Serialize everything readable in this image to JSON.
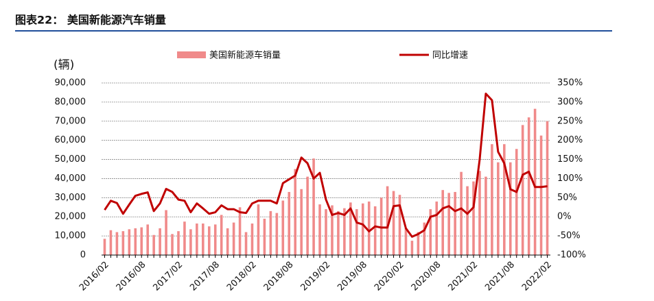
{
  "chart_data": {
    "type": "bar-line",
    "title": "图表22：   美国新能源汽车销量",
    "y_label": "(辆)",
    "categories": [
      "2016/02",
      null,
      null,
      null,
      null,
      null,
      "2016/08",
      null,
      null,
      null,
      null,
      null,
      "2017/02",
      null,
      null,
      null,
      null,
      null,
      "2017/08",
      null,
      null,
      null,
      null,
      null,
      "2018/02",
      null,
      null,
      null,
      null,
      null,
      "2018/08",
      null,
      null,
      null,
      null,
      null,
      "2019/02",
      null,
      null,
      null,
      null,
      null,
      "2019/08",
      null,
      null,
      null,
      null,
      null,
      "2020/02",
      null,
      null,
      null,
      null,
      null,
      "2020/08",
      null,
      null,
      null,
      null,
      null,
      "2021/02",
      null,
      null,
      null,
      null,
      null,
      "2021/08",
      null,
      null,
      null,
      null,
      null,
      "2022/02"
    ],
    "series": [
      {
        "name": "美国新能源车销量",
        "color": "#f08a8a",
        "axis": "y",
        "values": [
          8500,
          13000,
          12000,
          12500,
          13500,
          14000,
          14500,
          16000,
          10500,
          14000,
          23500,
          11000,
          12500,
          17500,
          13500,
          16500,
          16500,
          15000,
          16000,
          21000,
          14000,
          17000,
          25000,
          12000,
          16500,
          26500,
          19000,
          23000,
          22000,
          28500,
          33000,
          45000,
          34500,
          41000,
          50500,
          26500,
          24000,
          26000,
          23000,
          24500,
          27500,
          24000,
          27000,
          28000,
          25500,
          30000,
          36000,
          33500,
          31500,
          14000,
          7500,
          12000,
          17000,
          24000,
          28000,
          34000,
          32500,
          33000,
          43500,
          36000,
          38500,
          44000,
          41000,
          58000,
          48500,
          58000,
          48500,
          55500,
          68000,
          72000,
          76500,
          62500,
          70000
        ]
      },
      {
        "name": "同比增速",
        "color": "#c00000",
        "axis": "y2",
        "values": [
          18,
          42,
          36,
          8,
          32,
          55,
          60,
          64,
          15,
          35,
          73,
          65,
          45,
          42,
          12,
          35,
          22,
          8,
          12,
          30,
          20,
          20,
          12,
          10,
          35,
          42,
          42,
          42,
          35,
          88,
          98,
          108,
          155,
          140,
          100,
          115,
          45,
          5,
          10,
          5,
          22,
          -15,
          -20,
          -38,
          -25,
          -28,
          -28,
          28,
          30,
          -30,
          -52,
          -45,
          -35,
          0,
          5,
          22,
          28,
          15,
          22,
          8,
          25,
          150,
          322,
          305,
          170,
          140,
          72,
          65,
          110,
          118,
          78,
          78,
          80
        ]
      }
    ],
    "ylim": [
      0,
      90000
    ],
    "yticks": [
      0,
      {
        "value": 10000,
        "label": "10,000"
      },
      {
        "value": 20000,
        "label": "20,000"
      },
      {
        "value": 30000,
        "label": "30,000"
      },
      {
        "value": 40000,
        "label": "40,000"
      },
      {
        "value": 50000,
        "label": "50,000"
      },
      {
        "value": 60000,
        "label": "60,000"
      },
      {
        "value": 70000,
        "label": "70,000"
      },
      {
        "value": 80000,
        "label": "80,000"
      },
      {
        "value": 90000,
        "label": "90,000"
      }
    ],
    "y2lim": [
      -100,
      350
    ],
    "y2ticks": [
      {
        "value": -100,
        "label": "-100%"
      },
      {
        "value": -50,
        "label": "-50%"
      },
      {
        "value": 0,
        "label": "0%"
      },
      {
        "value": 50,
        "label": "50%"
      },
      {
        "value": 100,
        "label": "100%"
      },
      {
        "value": 150,
        "label": "150%"
      },
      {
        "value": 200,
        "label": "200%"
      },
      {
        "value": 250,
        "label": "250%"
      },
      {
        "value": 300,
        "label": "300%"
      },
      {
        "value": 350,
        "label": "350%"
      }
    ],
    "grid": true
  }
}
